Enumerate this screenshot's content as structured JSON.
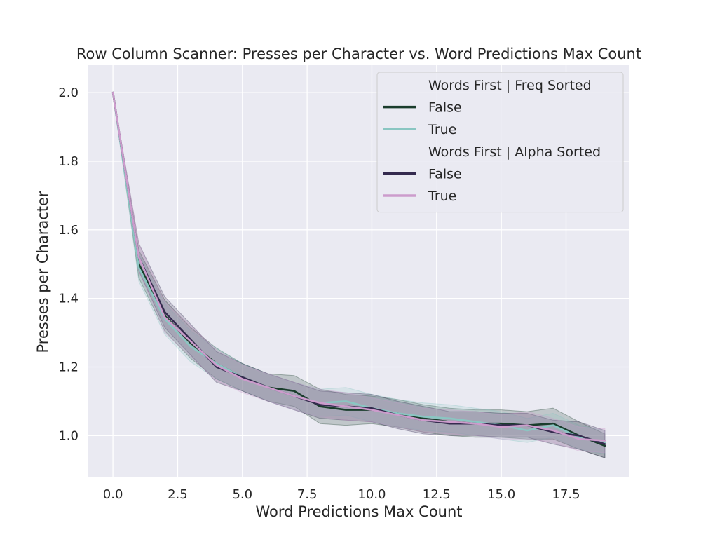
{
  "chart_data": {
    "type": "line",
    "title": "Row Column Scanner: Presses per Character vs. Word Predictions Max Count",
    "xlabel": "Word Predictions Max Count",
    "ylabel": "Presses per Character",
    "xlim": [
      -0.95,
      19.95
    ],
    "ylim": [
      0.88,
      2.08
    ],
    "xticks": [
      0.0,
      2.5,
      5.0,
      7.5,
      10.0,
      12.5,
      15.0,
      17.5
    ],
    "xtick_labels": [
      "0.0",
      "2.5",
      "5.0",
      "7.5",
      "10.0",
      "12.5",
      "15.0",
      "17.5"
    ],
    "yticks": [
      1.0,
      1.2,
      1.4,
      1.6,
      1.8,
      2.0
    ],
    "ytick_labels": [
      "1.0",
      "1.2",
      "1.4",
      "1.6",
      "1.8",
      "2.0"
    ],
    "grid": true,
    "legend_position": "top-right",
    "x": [
      0,
      1,
      2,
      3,
      4,
      5,
      6,
      7,
      8,
      9,
      10,
      11,
      12,
      13,
      14,
      15,
      16,
      17,
      18,
      19
    ],
    "legend_groups": [
      {
        "title": "Words First | Freq Sorted",
        "series": [
          {
            "name": "False",
            "color": "#1a3d2c",
            "values": [
              2.0,
              1.5,
              1.35,
              1.27,
              1.21,
              1.17,
              1.14,
              1.13,
              1.085,
              1.075,
              1.075,
              1.065,
              1.05,
              1.04,
              1.035,
              1.035,
              1.03,
              1.035,
              1.0,
              0.97
            ],
            "band_half_width": [
              0.0,
              0.04,
              0.045,
              0.045,
              0.045,
              0.04,
              0.04,
              0.045,
              0.05,
              0.045,
              0.04,
              0.04,
              0.04,
              0.04,
              0.04,
              0.04,
              0.04,
              0.045,
              0.04,
              0.035
            ]
          },
          {
            "name": "True",
            "color": "#8ac6c2",
            "values": [
              2.0,
              1.49,
              1.34,
              1.26,
              1.21,
              1.17,
              1.14,
              1.115,
              1.095,
              1.1,
              1.08,
              1.065,
              1.055,
              1.05,
              1.04,
              1.03,
              1.015,
              1.03,
              0.995,
              0.98
            ],
            "band_half_width": [
              0.0,
              0.04,
              0.045,
              0.045,
              0.045,
              0.04,
              0.04,
              0.04,
              0.04,
              0.04,
              0.04,
              0.04,
              0.04,
              0.04,
              0.04,
              0.04,
              0.035,
              0.035,
              0.035,
              0.035
            ]
          }
        ]
      },
      {
        "title": "Words First | Alpha Sorted",
        "series": [
          {
            "name": "False",
            "color": "#352b4f",
            "values": [
              2.0,
              1.52,
              1.36,
              1.28,
              1.2,
              1.17,
              1.14,
              1.115,
              1.09,
              1.085,
              1.08,
              1.06,
              1.045,
              1.035,
              1.035,
              1.03,
              1.03,
              1.01,
              1.0,
              0.975
            ],
            "band_half_width": [
              0.0,
              0.04,
              0.045,
              0.045,
              0.045,
              0.04,
              0.04,
              0.04,
              0.04,
              0.04,
              0.04,
              0.04,
              0.04,
              0.035,
              0.035,
              0.035,
              0.035,
              0.035,
              0.04,
              0.04
            ]
          },
          {
            "name": "True",
            "color": "#cc9ccc",
            "values": [
              2.0,
              1.52,
              1.345,
              1.275,
              1.205,
              1.165,
              1.14,
              1.115,
              1.095,
              1.085,
              1.075,
              1.06,
              1.045,
              1.04,
              1.035,
              1.025,
              1.03,
              1.015,
              0.99,
              0.985
            ],
            "band_half_width": [
              0.0,
              0.04,
              0.045,
              0.045,
              0.045,
              0.04,
              0.04,
              0.04,
              0.04,
              0.04,
              0.035,
              0.035,
              0.035,
              0.035,
              0.035,
              0.035,
              0.04,
              0.035,
              0.035,
              0.035
            ]
          }
        ]
      }
    ],
    "colors": {
      "plot_background": "#eaeaf2",
      "grid": "#ffffff",
      "legend_background": "#eaeaf2",
      "legend_border": "#cccccc"
    }
  }
}
